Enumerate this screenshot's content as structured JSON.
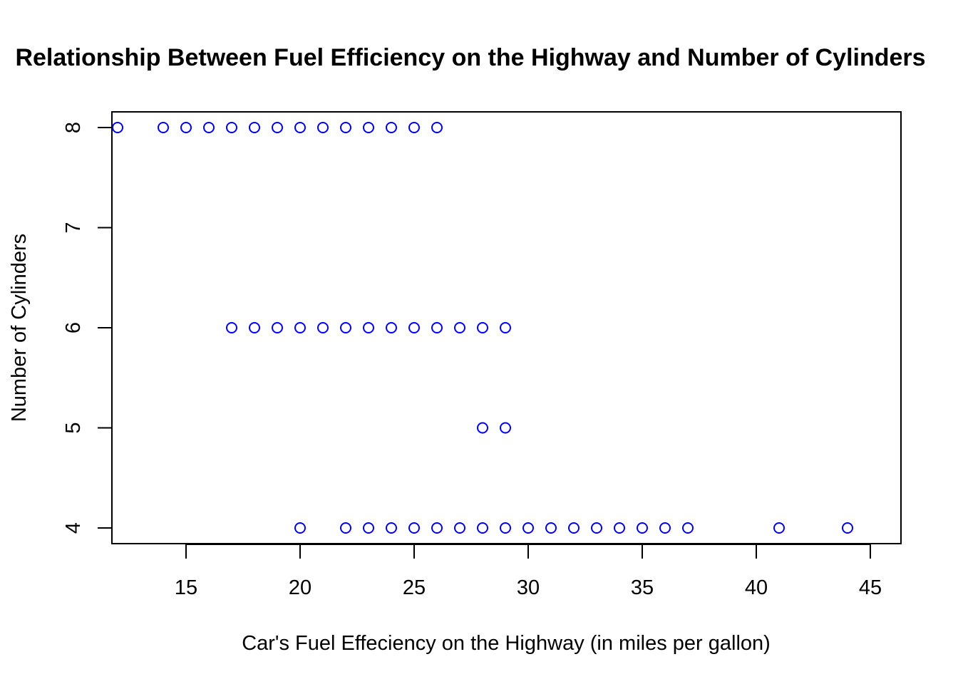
{
  "chart_data": {
    "type": "scatter",
    "title": "Relationship Between Fuel Efficiency on the Highway and Number of Cylinders",
    "xlabel": "Car's Fuel Effeciency on the Highway (in miles per gallon)",
    "ylabel": "Number of Cylinders",
    "xlim": [
      11,
      45.5
    ],
    "ylim": [
      3.85,
      8.15
    ],
    "x_ticks": [
      15,
      20,
      25,
      30,
      35,
      40,
      45
    ],
    "y_ticks": [
      4,
      5,
      6,
      7,
      8
    ],
    "grid": false,
    "marker": "open-circle",
    "point_color": "#0000ff",
    "points": [
      {
        "x": 12,
        "y": 8
      },
      {
        "x": 14,
        "y": 8
      },
      {
        "x": 15,
        "y": 8
      },
      {
        "x": 16,
        "y": 8
      },
      {
        "x": 17,
        "y": 8
      },
      {
        "x": 18,
        "y": 8
      },
      {
        "x": 19,
        "y": 8
      },
      {
        "x": 20,
        "y": 8
      },
      {
        "x": 21,
        "y": 8
      },
      {
        "x": 22,
        "y": 8
      },
      {
        "x": 23,
        "y": 8
      },
      {
        "x": 24,
        "y": 8
      },
      {
        "x": 25,
        "y": 8
      },
      {
        "x": 26,
        "y": 8
      },
      {
        "x": 17,
        "y": 6
      },
      {
        "x": 18,
        "y": 6
      },
      {
        "x": 19,
        "y": 6
      },
      {
        "x": 20,
        "y": 6
      },
      {
        "x": 21,
        "y": 6
      },
      {
        "x": 22,
        "y": 6
      },
      {
        "x": 23,
        "y": 6
      },
      {
        "x": 24,
        "y": 6
      },
      {
        "x": 25,
        "y": 6
      },
      {
        "x": 26,
        "y": 6
      },
      {
        "x": 27,
        "y": 6
      },
      {
        "x": 28,
        "y": 6
      },
      {
        "x": 29,
        "y": 6
      },
      {
        "x": 28,
        "y": 5
      },
      {
        "x": 29,
        "y": 5
      },
      {
        "x": 20,
        "y": 4
      },
      {
        "x": 22,
        "y": 4
      },
      {
        "x": 23,
        "y": 4
      },
      {
        "x": 24,
        "y": 4
      },
      {
        "x": 25,
        "y": 4
      },
      {
        "x": 26,
        "y": 4
      },
      {
        "x": 27,
        "y": 4
      },
      {
        "x": 28,
        "y": 4
      },
      {
        "x": 29,
        "y": 4
      },
      {
        "x": 30,
        "y": 4
      },
      {
        "x": 31,
        "y": 4
      },
      {
        "x": 32,
        "y": 4
      },
      {
        "x": 33,
        "y": 4
      },
      {
        "x": 34,
        "y": 4
      },
      {
        "x": 35,
        "y": 4
      },
      {
        "x": 36,
        "y": 4
      },
      {
        "x": 37,
        "y": 4
      },
      {
        "x": 41,
        "y": 4
      },
      {
        "x": 44,
        "y": 4
      }
    ]
  }
}
